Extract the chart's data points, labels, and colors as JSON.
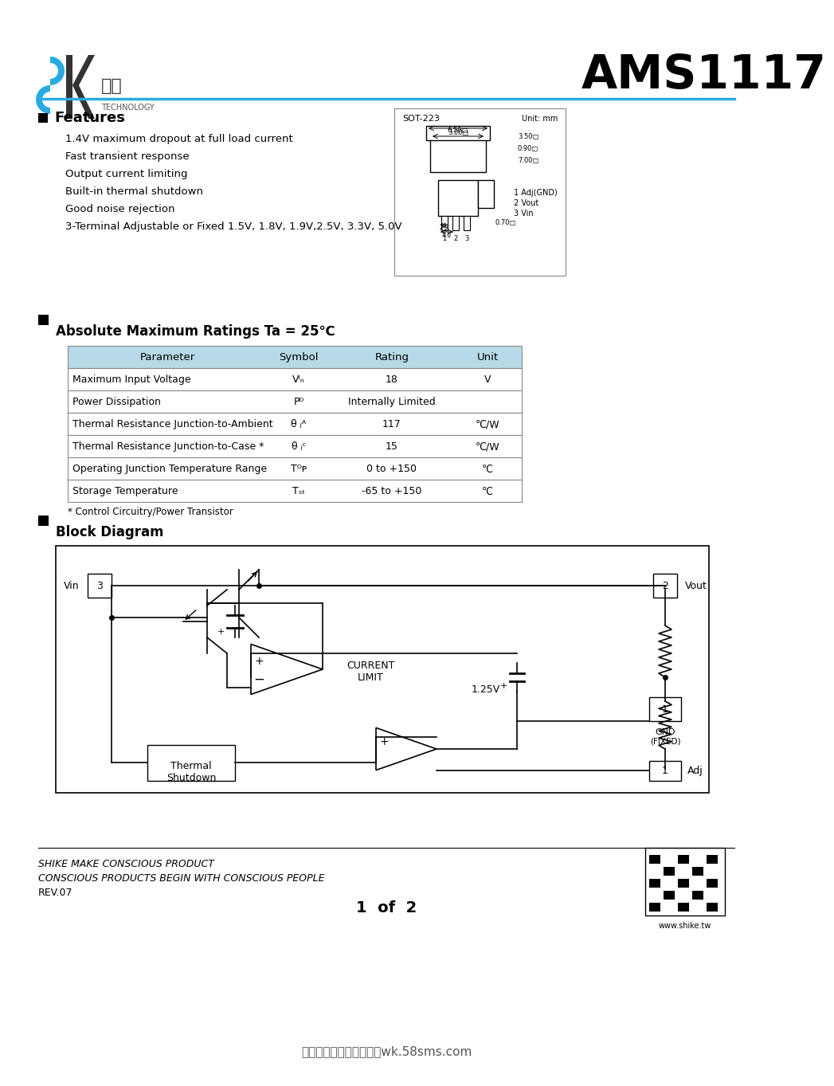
{
  "title": "AMS1117",
  "bg_color": "#ffffff",
  "header_line_color": "#29abe2",
  "company_name_cn": "时科",
  "company_subtitle": "TECHNOLOGY",
  "features_title": "Features",
  "features": [
    "1.4V maximum dropout at full load current",
    "Fast transient response",
    "Output current limiting",
    "Built-in thermal shutdown",
    "Good noise rejection",
    "3-Terminal Adjustable or Fixed 1.5V, 1.8V, 1.9V,2.5V, 3.3V, 5.0V"
  ],
  "ratings_title": "Absolute Maximum Ratings Ta = 25℃",
  "table_header_bg": "#b8d9e8",
  "table_header_text": "#000000",
  "table_cols": [
    "Parameter",
    "Symbol",
    "Rating",
    "Unit"
  ],
  "table_rows": [
    [
      "Maximum Input Voltage",
      "Vᴵₙ",
      "18",
      "V"
    ],
    [
      "Power Dissipation",
      "Pᴰ",
      "Internally Limited",
      ""
    ],
    [
      "Thermal Resistance Junction-to-Ambient",
      "θ ⱼᴬ",
      "117",
      "℃/W"
    ],
    [
      "Thermal Resistance Junction-to-Case *",
      "θ ⱼᶜ",
      "15",
      "℃/W"
    ],
    [
      "Operating Junction Temperature Range",
      "Tᴼᴘ",
      "0 to +150",
      "℃"
    ],
    [
      "Storage Temperature",
      "Tₛₜ",
      "-65 to +150",
      "℃"
    ]
  ],
  "table_note": "* Control Circuitry/Power Transistor",
  "block_diagram_title": "Block Diagram",
  "footer_line1": "SHIKE MAKE CONSCIOUS PRODUCT",
  "footer_line2": "CONSCIOUS PRODUCTS BEGIN WITH CONSCIOUS PEOPLE",
  "footer_rev": "REV.07",
  "footer_page": "1  of  2",
  "footer_website": "www.shike.tw",
  "bottom_text": "更多资料下载请到五八库wk.58sms.com"
}
